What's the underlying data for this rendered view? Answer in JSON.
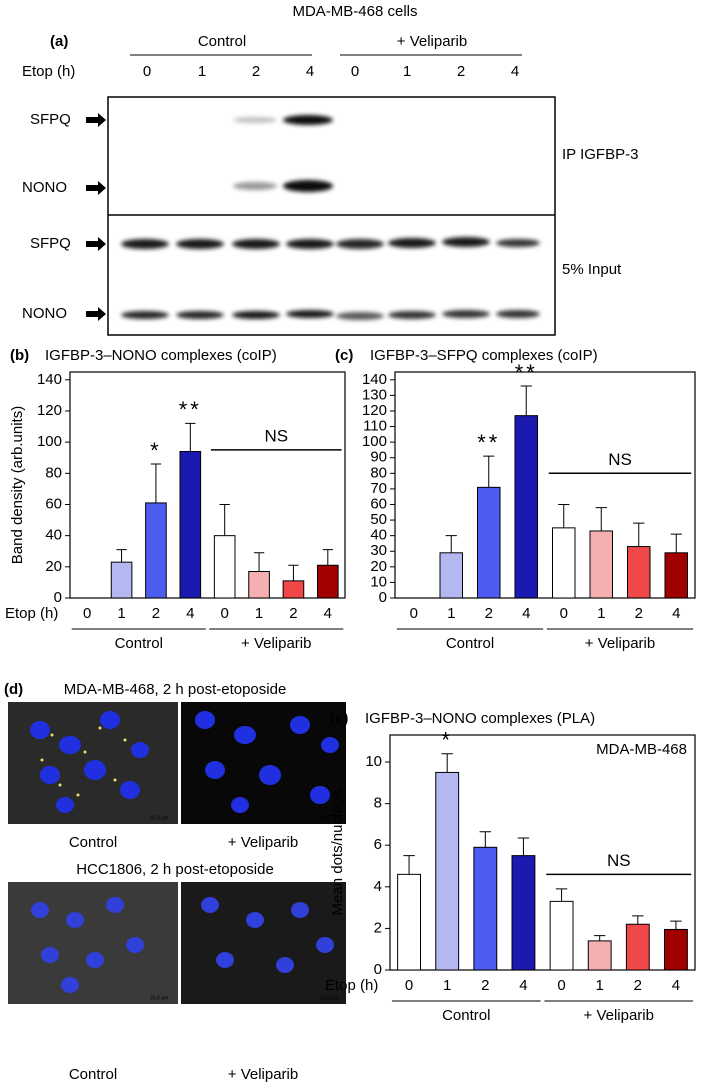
{
  "figure_title": "MDA-MB-468 cells",
  "blot": {
    "panel": "(a)",
    "groups": [
      "Control",
      "+ Veliparib"
    ],
    "etop_label": "Etop (h)",
    "lanes": [
      "0",
      "1",
      "2",
      "4",
      "0",
      "1",
      "2",
      "4"
    ],
    "proteins": [
      "SFPQ",
      "NONO",
      "SFPQ",
      "NONO"
    ],
    "sections": [
      "IP IGFBP-3",
      "5% Input"
    ]
  },
  "micrographs": {
    "panel": "(d)",
    "rows": [
      {
        "title": "MDA-MB-468, 2 h post-etoposide",
        "labels": [
          "Control",
          "+ Veliparib"
        ],
        "scale": "20.0 µm"
      },
      {
        "title": "HCC1806, 2 h post-etoposide",
        "labels": [
          "Control",
          "+ Veliparib"
        ],
        "scale": "20.0 µm"
      }
    ]
  },
  "chart_data": [
    {
      "type": "bar",
      "panel": "(b)",
      "title": "IGFBP-3–NONO complexes (coIP)",
      "ylabel": "Band density (arb.units)",
      "xlabel": "Etop (h)",
      "categories": [
        "0",
        "1",
        "2",
        "4",
        "0",
        "1",
        "2",
        "4"
      ],
      "values": [
        0,
        23,
        61,
        94,
        40,
        17,
        11,
        21
      ],
      "errors": [
        0,
        8,
        25,
        18,
        20,
        12,
        10,
        10
      ],
      "colors": [
        "#ffffff",
        "#b3b8f0",
        "#4d5df0",
        "#1a1ab0",
        "#ffffff",
        "#f4b0b0",
        "#f04848",
        "#a00000"
      ],
      "ylim": [
        0,
        145
      ],
      "yticks": [
        0,
        20,
        40,
        60,
        80,
        100,
        120,
        140
      ],
      "significance": [
        {
          "index": 2,
          "label": "*"
        },
        {
          "index": 3,
          "label": "**"
        }
      ],
      "ns": {
        "label": "NS",
        "value": 95,
        "start": 4,
        "end": 7
      },
      "groups": [
        {
          "label": "Control",
          "start": 0,
          "end": 3
        },
        {
          "label": "+ Veliparib",
          "start": 4,
          "end": 7
        }
      ]
    },
    {
      "type": "bar",
      "panel": "(c)",
      "title": "IGFBP-3–SFPQ complexes (coIP)",
      "categories": [
        "0",
        "1",
        "2",
        "4",
        "0",
        "1",
        "2",
        "4"
      ],
      "values": [
        0,
        29,
        71,
        117,
        45,
        43,
        33,
        29
      ],
      "errors": [
        0,
        11,
        20,
        19,
        15,
        15,
        15,
        12
      ],
      "colors": [
        "#ffffff",
        "#b3b8f0",
        "#4d5df0",
        "#1a1ab0",
        "#ffffff",
        "#f4b0b0",
        "#f04848",
        "#a00000"
      ],
      "ylim": [
        0,
        145
      ],
      "yticks": [
        0,
        10,
        20,
        30,
        40,
        50,
        60,
        70,
        80,
        90,
        100,
        110,
        120,
        130,
        140
      ],
      "significance": [
        {
          "index": 2,
          "label": "**"
        },
        {
          "index": 3,
          "label": "**"
        }
      ],
      "ns": {
        "label": "NS",
        "value": 80,
        "start": 4,
        "end": 7
      },
      "groups": [
        {
          "label": "Control",
          "start": 0,
          "end": 3
        },
        {
          "label": "+ Veliparib",
          "start": 4,
          "end": 7
        }
      ]
    },
    {
      "type": "bar",
      "panel": "(e)",
      "title": "IGFBP-3–NONO complexes (PLA)",
      "ylabel": "Mean dots/nucleus",
      "xlabel": "Etop (h)",
      "annotation": "MDA-MB-468",
      "categories": [
        "0",
        "1",
        "2",
        "4",
        "0",
        "1",
        "2",
        "4"
      ],
      "values": [
        4.6,
        9.5,
        5.9,
        5.5,
        3.3,
        1.4,
        2.2,
        1.95
      ],
      "errors": [
        0.9,
        0.9,
        0.75,
        0.85,
        0.6,
        0.25,
        0.4,
        0.4
      ],
      "colors": [
        "#ffffff",
        "#b3b8f0",
        "#4d5df0",
        "#1a1ab0",
        "#ffffff",
        "#f4b0b0",
        "#f04848",
        "#a00000"
      ],
      "ylim": [
        0,
        11.3
      ],
      "yticks": [
        0,
        2,
        4,
        6,
        8,
        10
      ],
      "significance": [
        {
          "index": 1,
          "label": "*"
        }
      ],
      "ns": {
        "label": "NS",
        "value": 4.6,
        "start": 4,
        "end": 7
      },
      "groups": [
        {
          "label": "Control",
          "start": 0,
          "end": 3
        },
        {
          "label": "+ Veliparib",
          "start": 4,
          "end": 7
        }
      ]
    }
  ]
}
